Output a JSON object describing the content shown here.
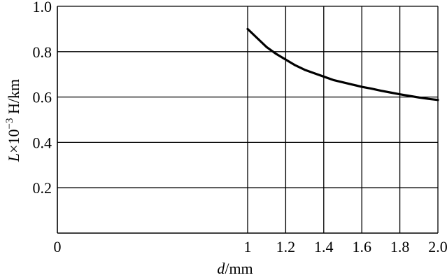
{
  "chart_data": {
    "type": "line",
    "xlabel_var": "d",
    "xlabel_unit": "/mm",
    "ylabel_var": "L",
    "ylabel_mid": "×10",
    "ylabel_sup": "−3",
    "ylabel_unit": " H/km",
    "xlim": [
      0,
      2.0
    ],
    "ylim": [
      0,
      1.0
    ],
    "x_ticks": [
      0,
      1,
      1.2,
      1.4,
      1.6,
      1.8,
      2.0
    ],
    "x_tick_labels": [
      "0",
      "1",
      "1.2",
      "1.4",
      "1.6",
      "1.8",
      "2.0"
    ],
    "y_ticks": [
      0.2,
      0.4,
      0.6,
      0.8,
      1.0
    ],
    "y_tick_labels": [
      "0.2",
      "0.4",
      "0.6",
      "0.8",
      "1.0"
    ],
    "grid": true,
    "series": [
      {
        "x": [
          1.0,
          1.05,
          1.1,
          1.15,
          1.2,
          1.25,
          1.3,
          1.35,
          1.4,
          1.45,
          1.5,
          1.55,
          1.6,
          1.65,
          1.7,
          1.75,
          1.8,
          1.85,
          1.9,
          1.95,
          2.0
        ],
        "y": [
          0.9,
          0.86,
          0.82,
          0.79,
          0.765,
          0.74,
          0.72,
          0.705,
          0.69,
          0.675,
          0.665,
          0.655,
          0.645,
          0.637,
          0.628,
          0.62,
          0.612,
          0.605,
          0.598,
          0.592,
          0.587
        ]
      }
    ]
  }
}
